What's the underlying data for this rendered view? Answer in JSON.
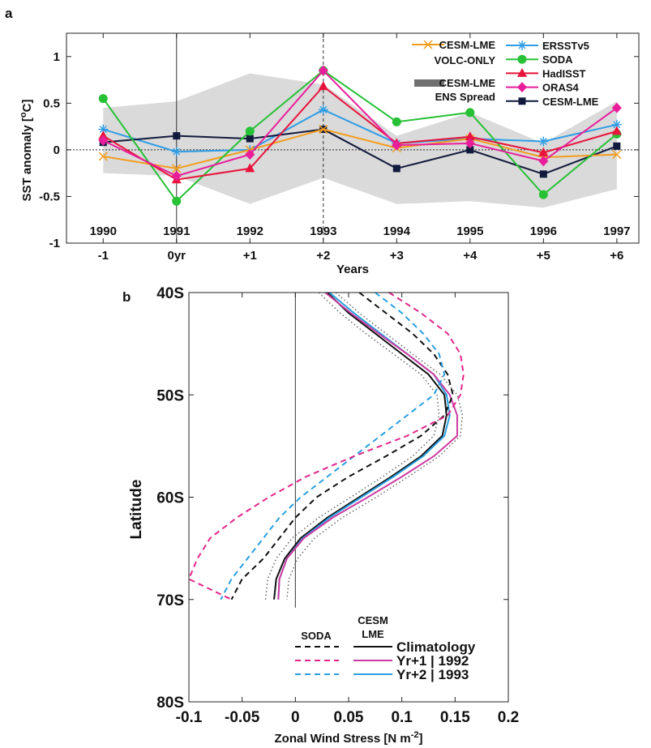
{
  "chart_data": [
    {
      "panel": "a",
      "type": "line",
      "xlabel": "Years",
      "ylabel": "SST anomaly [°C]",
      "ylabel_main": "SST anomaly [",
      "ylabel_sup": "o",
      "ylabel_unit": "C]",
      "x": [
        -1,
        0,
        1,
        2,
        3,
        4,
        5,
        6
      ],
      "xtick_labels": [
        "-1",
        "0yr",
        "+1",
        "+2",
        "+3",
        "+4",
        "+5",
        "+6"
      ],
      "year_labels": [
        "1990",
        "1991",
        "1992",
        "1993",
        "1994",
        "1995",
        "1996",
        "1997"
      ],
      "yticks": [
        -1,
        -0.5,
        0,
        0.5,
        1
      ],
      "ytick_labels": [
        "-1",
        "-0.5",
        "0",
        "0.5",
        "1"
      ],
      "ylim": [
        -1,
        1.25
      ],
      "xlim": [
        -1.5,
        6.3
      ],
      "vlines": [
        0,
        2
      ],
      "shade": {
        "label_1": "CESM-LME",
        "label_2": "ENS Spread",
        "color": "#dadada",
        "upper": [
          0.45,
          0.52,
          0.82,
          0.7,
          0.15,
          0.4,
          0.07,
          0.52
        ],
        "lower": [
          -0.25,
          -0.28,
          -0.58,
          -0.3,
          -0.58,
          -0.55,
          -0.62,
          -0.42
        ]
      },
      "series": [
        {
          "name": "CESM-LME",
          "name_2": "VOLC-ONLY",
          "color": "#f39c1c",
          "marker": "x",
          "values": [
            -0.07,
            -0.2,
            0.0,
            0.22,
            0.02,
            0.12,
            -0.08,
            -0.05
          ]
        },
        {
          "name": "ERSSTv5",
          "color": "#2e9de6",
          "marker": "star",
          "values": [
            0.22,
            -0.02,
            0.0,
            0.43,
            0.07,
            0.12,
            0.09,
            0.27
          ]
        },
        {
          "name": "SODA",
          "color": "#27c136",
          "marker": "circle",
          "values": [
            0.55,
            -0.55,
            0.2,
            0.85,
            0.3,
            0.4,
            -0.48,
            0.17
          ]
        },
        {
          "name": "HadISST",
          "color": "#e8143c",
          "marker": "triangle",
          "values": [
            0.15,
            -0.32,
            -0.2,
            0.68,
            0.07,
            0.14,
            -0.03,
            0.2
          ]
        },
        {
          "name": "ORAS4",
          "color": "#e81e9a",
          "marker": "diamond",
          "values": [
            0.1,
            -0.28,
            -0.05,
            0.85,
            0.05,
            0.07,
            -0.12,
            0.45
          ]
        },
        {
          "name": "CESM-LME",
          "color": "#111a3c",
          "marker": "square",
          "values": [
            0.08,
            0.15,
            0.12,
            0.22,
            -0.2,
            0.0,
            -0.26,
            0.04
          ]
        }
      ]
    },
    {
      "panel": "b",
      "type": "line",
      "xlabel": "Zonal Wind Stress [N m",
      "xlabel_sup": "-2",
      "xlabel_end": "]",
      "ylabel": "Latitude",
      "xticks": [
        -0.1,
        -0.05,
        0,
        0.05,
        0.1,
        0.15,
        0.2
      ],
      "xtick_labels": [
        "-0.1",
        "-0.05",
        "0",
        "0.05",
        "0.1",
        "0.15",
        "0.2"
      ],
      "yticks": [
        -40,
        -50,
        -60,
        -70,
        -80
      ],
      "ytick_labels": [
        "40S",
        "50S",
        "60S",
        "70S",
        "80S"
      ],
      "xlim": [
        -0.1,
        0.2
      ],
      "ylim": [
        -80,
        -40
      ],
      "latitudes": [
        -40,
        -42,
        -44,
        -46,
        -48,
        -50,
        -52,
        -54,
        -56,
        -58,
        -60,
        -62,
        -64,
        -66,
        -68,
        -70
      ],
      "legend": {
        "col_soda": "SODA",
        "col_cesm_1": "CESM",
        "col_cesm_2": "LME",
        "rows": [
          "Climatology",
          "Yr+1 | 1992",
          "Yr+2 | 1993"
        ]
      },
      "series": [
        {
          "name": "Climatology",
          "source": "SODA",
          "style": "dashed",
          "color": "#111111",
          "values": [
            0.06,
            0.085,
            0.11,
            0.13,
            0.143,
            0.148,
            0.14,
            0.118,
            0.085,
            0.05,
            0.02,
            0.0,
            -0.015,
            -0.03,
            -0.05,
            -0.06
          ]
        },
        {
          "name": "Yr+1 | 1992",
          "source": "SODA",
          "style": "dashed",
          "color": "#e0268a",
          "values": [
            0.088,
            0.118,
            0.143,
            0.155,
            0.158,
            0.155,
            0.143,
            0.105,
            0.055,
            0.01,
            -0.025,
            -0.055,
            -0.08,
            -0.092,
            -0.1,
            -0.06
          ]
        },
        {
          "name": "Yr+2 | 1993",
          "source": "SODA",
          "style": "dashed",
          "color": "#2a9fe0",
          "values": [
            0.075,
            0.1,
            0.12,
            0.135,
            0.14,
            0.13,
            0.105,
            0.08,
            0.055,
            0.03,
            0.005,
            -0.015,
            -0.03,
            -0.045,
            -0.06,
            -0.07
          ]
        },
        {
          "name": "Climatology",
          "source": "CESM LME",
          "style": "solid",
          "color": "#111111",
          "values": [
            0.03,
            0.05,
            0.075,
            0.1,
            0.125,
            0.14,
            0.142,
            0.138,
            0.118,
            0.09,
            0.06,
            0.03,
            0.005,
            -0.01,
            -0.018,
            -0.02
          ]
        },
        {
          "name": "Yr+1 | 1992",
          "source": "CESM LME",
          "style": "solid",
          "color": "#cc3ba2",
          "values": [
            0.028,
            0.052,
            0.078,
            0.105,
            0.13,
            0.145,
            0.152,
            0.152,
            0.13,
            0.1,
            0.068,
            0.035,
            0.008,
            -0.008,
            -0.015,
            -0.016
          ]
        },
        {
          "name": "Yr+2 | 1993",
          "source": "CESM LME",
          "style": "solid",
          "color": "#2a9fe0",
          "values": [
            0.032,
            0.055,
            0.08,
            0.105,
            0.13,
            0.142,
            0.145,
            0.14,
            0.12,
            0.092,
            0.062,
            0.032,
            0.007,
            -0.008,
            -0.015,
            -0.016
          ]
        },
        {
          "name": "",
          "source": "CESM LME spread",
          "style": "dotted",
          "color": "#666666",
          "values": [
            0.022,
            0.042,
            0.066,
            0.092,
            0.118,
            0.133,
            0.135,
            0.13,
            0.11,
            0.082,
            0.052,
            0.022,
            -0.003,
            -0.018,
            -0.026,
            -0.028
          ]
        },
        {
          "name": "",
          "source": "CESM LME spread",
          "style": "dotted",
          "color": "#666666",
          "values": [
            0.038,
            0.06,
            0.085,
            0.11,
            0.136,
            0.152,
            0.157,
            0.155,
            0.135,
            0.106,
            0.076,
            0.044,
            0.018,
            0.002,
            -0.006,
            -0.008
          ]
        }
      ]
    }
  ],
  "panel_letters": [
    "a",
    "b"
  ]
}
